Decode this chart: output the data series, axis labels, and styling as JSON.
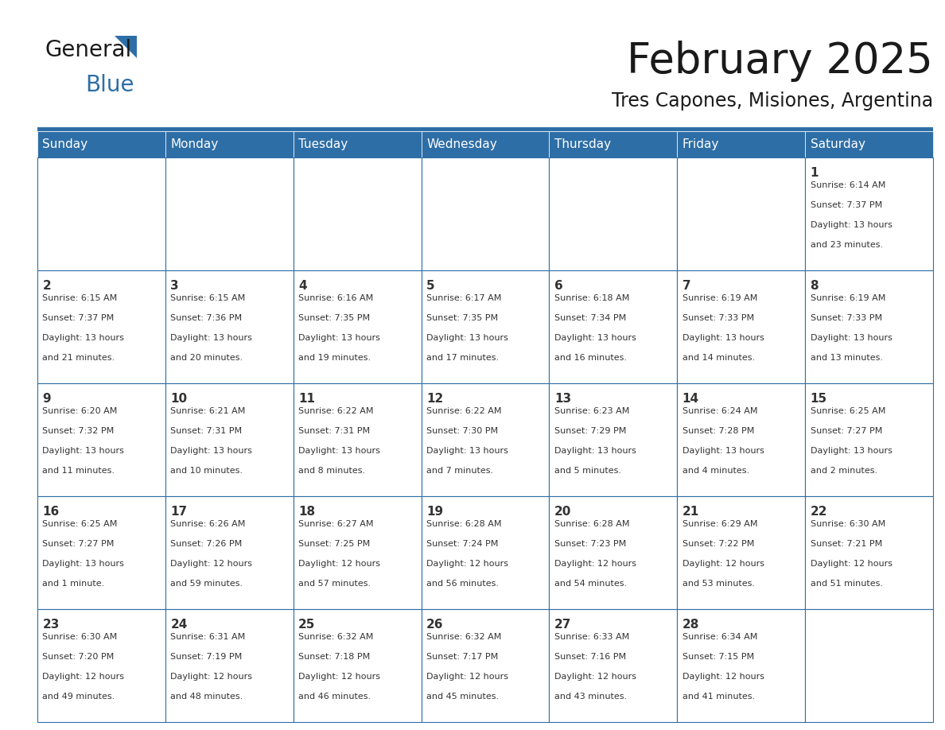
{
  "title": "February 2025",
  "subtitle": "Tres Capones, Misiones, Argentina",
  "header_bg": "#2E6EA6",
  "header_text_color": "#FFFFFF",
  "border_color": "#2E6EA6",
  "text_color": "#333333",
  "days_of_week": [
    "Sunday",
    "Monday",
    "Tuesday",
    "Wednesday",
    "Thursday",
    "Friday",
    "Saturday"
  ],
  "calendar_data": [
    [
      null,
      null,
      null,
      null,
      null,
      null,
      {
        "day": "1",
        "sunrise": "6:14 AM",
        "sunset": "7:37 PM",
        "daylight_line1": "Daylight: 13 hours",
        "daylight_line2": "and 23 minutes."
      }
    ],
    [
      {
        "day": "2",
        "sunrise": "6:15 AM",
        "sunset": "7:37 PM",
        "daylight_line1": "Daylight: 13 hours",
        "daylight_line2": "and 21 minutes."
      },
      {
        "day": "3",
        "sunrise": "6:15 AM",
        "sunset": "7:36 PM",
        "daylight_line1": "Daylight: 13 hours",
        "daylight_line2": "and 20 minutes."
      },
      {
        "day": "4",
        "sunrise": "6:16 AM",
        "sunset": "7:35 PM",
        "daylight_line1": "Daylight: 13 hours",
        "daylight_line2": "and 19 minutes."
      },
      {
        "day": "5",
        "sunrise": "6:17 AM",
        "sunset": "7:35 PM",
        "daylight_line1": "Daylight: 13 hours",
        "daylight_line2": "and 17 minutes."
      },
      {
        "day": "6",
        "sunrise": "6:18 AM",
        "sunset": "7:34 PM",
        "daylight_line1": "Daylight: 13 hours",
        "daylight_line2": "and 16 minutes."
      },
      {
        "day": "7",
        "sunrise": "6:19 AM",
        "sunset": "7:33 PM",
        "daylight_line1": "Daylight: 13 hours",
        "daylight_line2": "and 14 minutes."
      },
      {
        "day": "8",
        "sunrise": "6:19 AM",
        "sunset": "7:33 PM",
        "daylight_line1": "Daylight: 13 hours",
        "daylight_line2": "and 13 minutes."
      }
    ],
    [
      {
        "day": "9",
        "sunrise": "6:20 AM",
        "sunset": "7:32 PM",
        "daylight_line1": "Daylight: 13 hours",
        "daylight_line2": "and 11 minutes."
      },
      {
        "day": "10",
        "sunrise": "6:21 AM",
        "sunset": "7:31 PM",
        "daylight_line1": "Daylight: 13 hours",
        "daylight_line2": "and 10 minutes."
      },
      {
        "day": "11",
        "sunrise": "6:22 AM",
        "sunset": "7:31 PM",
        "daylight_line1": "Daylight: 13 hours",
        "daylight_line2": "and 8 minutes."
      },
      {
        "day": "12",
        "sunrise": "6:22 AM",
        "sunset": "7:30 PM",
        "daylight_line1": "Daylight: 13 hours",
        "daylight_line2": "and 7 minutes."
      },
      {
        "day": "13",
        "sunrise": "6:23 AM",
        "sunset": "7:29 PM",
        "daylight_line1": "Daylight: 13 hours",
        "daylight_line2": "and 5 minutes."
      },
      {
        "day": "14",
        "sunrise": "6:24 AM",
        "sunset": "7:28 PM",
        "daylight_line1": "Daylight: 13 hours",
        "daylight_line2": "and 4 minutes."
      },
      {
        "day": "15",
        "sunrise": "6:25 AM",
        "sunset": "7:27 PM",
        "daylight_line1": "Daylight: 13 hours",
        "daylight_line2": "and 2 minutes."
      }
    ],
    [
      {
        "day": "16",
        "sunrise": "6:25 AM",
        "sunset": "7:27 PM",
        "daylight_line1": "Daylight: 13 hours",
        "daylight_line2": "and 1 minute."
      },
      {
        "day": "17",
        "sunrise": "6:26 AM",
        "sunset": "7:26 PM",
        "daylight_line1": "Daylight: 12 hours",
        "daylight_line2": "and 59 minutes."
      },
      {
        "day": "18",
        "sunrise": "6:27 AM",
        "sunset": "7:25 PM",
        "daylight_line1": "Daylight: 12 hours",
        "daylight_line2": "and 57 minutes."
      },
      {
        "day": "19",
        "sunrise": "6:28 AM",
        "sunset": "7:24 PM",
        "daylight_line1": "Daylight: 12 hours",
        "daylight_line2": "and 56 minutes."
      },
      {
        "day": "20",
        "sunrise": "6:28 AM",
        "sunset": "7:23 PM",
        "daylight_line1": "Daylight: 12 hours",
        "daylight_line2": "and 54 minutes."
      },
      {
        "day": "21",
        "sunrise": "6:29 AM",
        "sunset": "7:22 PM",
        "daylight_line1": "Daylight: 12 hours",
        "daylight_line2": "and 53 minutes."
      },
      {
        "day": "22",
        "sunrise": "6:30 AM",
        "sunset": "7:21 PM",
        "daylight_line1": "Daylight: 12 hours",
        "daylight_line2": "and 51 minutes."
      }
    ],
    [
      {
        "day": "23",
        "sunrise": "6:30 AM",
        "sunset": "7:20 PM",
        "daylight_line1": "Daylight: 12 hours",
        "daylight_line2": "and 49 minutes."
      },
      {
        "day": "24",
        "sunrise": "6:31 AM",
        "sunset": "7:19 PM",
        "daylight_line1": "Daylight: 12 hours",
        "daylight_line2": "and 48 minutes."
      },
      {
        "day": "25",
        "sunrise": "6:32 AM",
        "sunset": "7:18 PM",
        "daylight_line1": "Daylight: 12 hours",
        "daylight_line2": "and 46 minutes."
      },
      {
        "day": "26",
        "sunrise": "6:32 AM",
        "sunset": "7:17 PM",
        "daylight_line1": "Daylight: 12 hours",
        "daylight_line2": "and 45 minutes."
      },
      {
        "day": "27",
        "sunrise": "6:33 AM",
        "sunset": "7:16 PM",
        "daylight_line1": "Daylight: 12 hours",
        "daylight_line2": "and 43 minutes."
      },
      {
        "day": "28",
        "sunrise": "6:34 AM",
        "sunset": "7:15 PM",
        "daylight_line1": "Daylight: 12 hours",
        "daylight_line2": "and 41 minutes."
      },
      null
    ]
  ],
  "logo_general_color": "#1a1a1a",
  "logo_blue_color": "#2E6EA6",
  "title_fontsize": 38,
  "subtitle_fontsize": 17,
  "header_fontsize": 11,
  "day_num_fontsize": 11,
  "cell_text_fontsize": 8
}
